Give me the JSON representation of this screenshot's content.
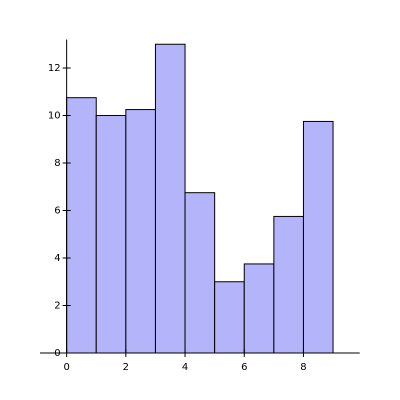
{
  "chart_data": {
    "type": "histogram",
    "bins": [
      0,
      1,
      2,
      3,
      4,
      5,
      6,
      7,
      8,
      9
    ],
    "counts": [
      10.75,
      10,
      10.25,
      13,
      6.75,
      3,
      3.75,
      5.75,
      9.75
    ],
    "color": "#b4b4fa",
    "xlim": [
      -0.9,
      9.9
    ],
    "ylim": [
      0,
      13.2
    ],
    "xticks": [
      0,
      2,
      4,
      6,
      8
    ],
    "yticks": [
      0,
      2,
      4,
      6,
      8,
      10,
      12
    ]
  }
}
